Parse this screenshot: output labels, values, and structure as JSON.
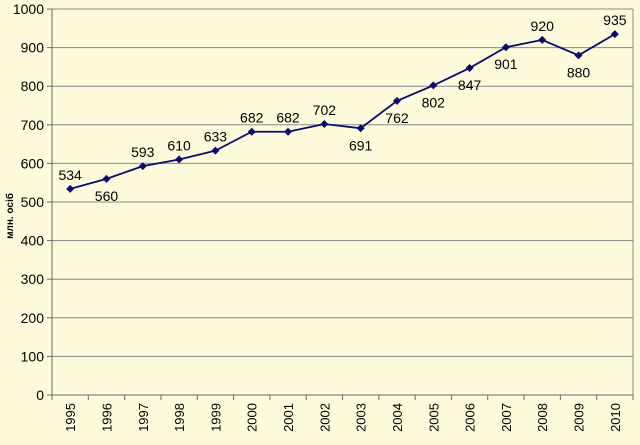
{
  "chart_data": {
    "type": "line",
    "title": "",
    "xlabel": "",
    "ylabel": "млн. осіб",
    "x": [
      "1995",
      "1996",
      "1997",
      "1998",
      "1999",
      "2000",
      "2001",
      "2002",
      "2003",
      "2004",
      "2005",
      "2006",
      "2007",
      "2008",
      "2009",
      "2010"
    ],
    "series": [
      {
        "values": [
          534,
          560,
          593,
          610,
          633,
          682,
          682,
          702,
          691,
          762,
          802,
          847,
          901,
          920,
          880,
          935
        ],
        "labels": [
          "534",
          "560",
          "593",
          "610",
          "633",
          "682",
          "682",
          "702",
          "691",
          "762",
          "802",
          "847",
          "901",
          "920",
          "880",
          "935"
        ],
        "label_side": [
          "above",
          "below",
          "above",
          "above",
          "above",
          "above",
          "above",
          "above",
          "below",
          "below",
          "below",
          "below",
          "below",
          "above",
          "below",
          "above"
        ]
      }
    ],
    "ylim": [
      0,
      1000
    ],
    "yticks": [
      "0",
      "100",
      "200",
      "300",
      "400",
      "500",
      "600",
      "700",
      "800",
      "900",
      "1000"
    ],
    "grid": true,
    "legend": "none",
    "colors": {
      "line": "#0b0b6e",
      "marker": "#0b0b6e",
      "background": "#fdfbdc",
      "grid": "#8a8a8a",
      "axis": "#6a6a6a"
    }
  }
}
